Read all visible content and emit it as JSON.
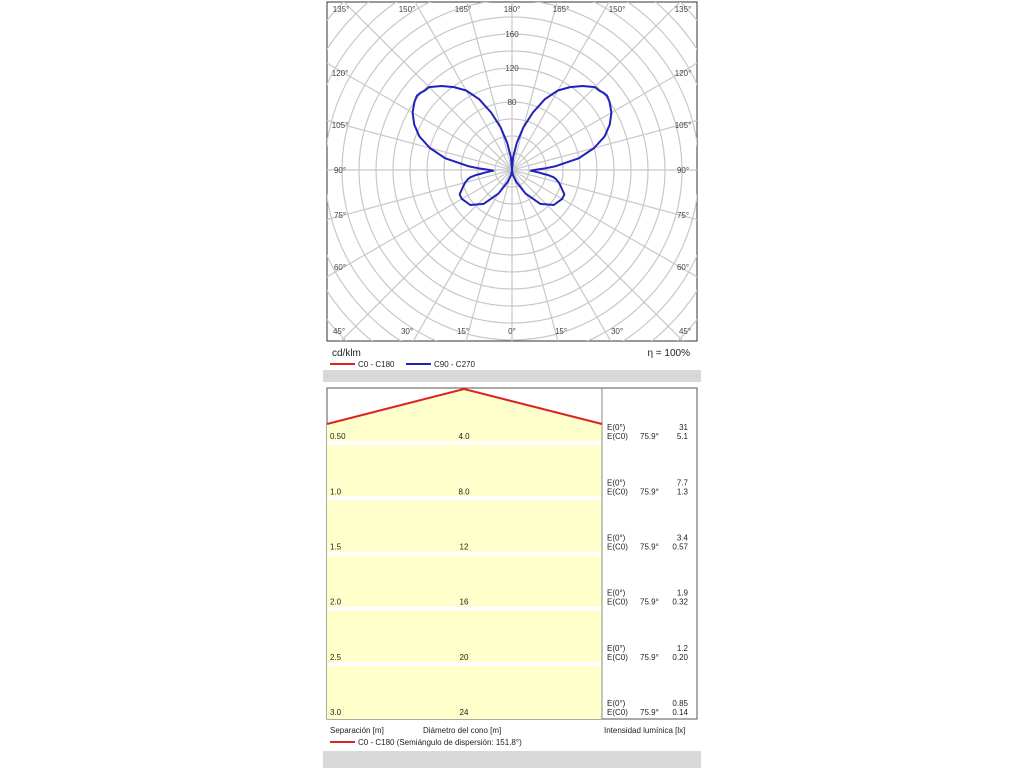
{
  "polar": {
    "unit_label": "cd/klm",
    "efficiency_label": "η = 100%",
    "radial_ticks": [
      "80",
      "120",
      "160"
    ],
    "top_angle_labels": [
      "135°",
      "150°",
      "165°",
      "180°",
      "165°",
      "150°",
      "135°"
    ],
    "side_angle_labels": [
      "120°",
      "105°",
      "90°",
      "75°",
      "60°"
    ],
    "bottom_angle_labels": [
      "45°",
      "30°",
      "15°",
      "0°",
      "15°",
      "30°",
      "45°"
    ],
    "legend": [
      {
        "label": "C0 - C180",
        "color": "#dd2222"
      },
      {
        "label": "C90 - C270",
        "color": "#2222bb"
      }
    ]
  },
  "cone": {
    "rows": [
      {
        "sep": "0.50",
        "diam": "4.0",
        "e0": "31",
        "ang": "75.9°",
        "ec0": "5.1"
      },
      {
        "sep": "1.0",
        "diam": "8.0",
        "e0": "7.7",
        "ang": "75.9°",
        "ec0": "1.3"
      },
      {
        "sep": "1.5",
        "diam": "12",
        "e0": "3.4",
        "ang": "75.9°",
        "ec0": "0.57"
      },
      {
        "sep": "2.0",
        "diam": "16",
        "e0": "1.9",
        "ang": "75.9°",
        "ec0": "0.32"
      },
      {
        "sep": "2.5",
        "diam": "20",
        "e0": "1.2",
        "ang": "75.9°",
        "ec0": "0.20"
      },
      {
        "sep": "3.0",
        "diam": "24",
        "e0": "0.85",
        "ang": "75.9°",
        "ec0": "0.14"
      }
    ],
    "e0_label": "E(0°)",
    "ec0_label": "E(C0)",
    "sep_label": "Separación [m]",
    "diam_label": "Diámetro del cono [m]",
    "intensity_label": "Intensidad lumínica [lx]",
    "legend_label": "C0 - C180 (Semiángulo de dispersión: 151.8°)",
    "legend_color": "#dd2222"
  },
  "chart_data": [
    {
      "type": "polar",
      "rlim": [
        0,
        180
      ],
      "radial_ticks": [
        80,
        120,
        160
      ],
      "series": [
        {
          "name": "C90 - C270",
          "angles_deg": [
            0,
            10,
            20,
            30,
            40,
            50,
            60,
            65,
            70,
            72,
            75,
            78,
            80,
            82,
            85,
            88,
            90,
            93,
            95,
            100,
            105,
            110,
            115,
            120,
            125,
            128,
            130,
            132,
            135,
            140,
            145,
            150,
            155,
            160,
            165,
            170,
            175,
            180
          ],
          "values": [
            0,
            6,
            15,
            32,
            52,
            64,
            68,
            68,
            62,
            60,
            57,
            53,
            50,
            43,
            30,
            22,
            26,
            40,
            52,
            80,
            100,
            116,
            127,
            135,
            140,
            142,
            141,
            139,
            138,
            129,
            119,
            108,
            92,
            72,
            52,
            32,
            15,
            0
          ]
        },
        {
          "name": "C0 - C180",
          "values": []
        }
      ],
      "grid": true
    },
    {
      "type": "table",
      "title": "",
      "series": [
        {
          "name": "C0 - C180",
          "x": [
            0,
            1,
            2
          ],
          "y": [
            0.5,
            0,
            0.5
          ]
        }
      ],
      "columns": [
        "Separación [m]",
        "Diámetro del cono [m]",
        "Intensidad lumínica [lx]"
      ],
      "rows": [
        [
          "0.50",
          "4.0",
          "31",
          "75.9°",
          "5.1"
        ],
        [
          "1.0",
          "8.0",
          "7.7",
          "75.9°",
          "1.3"
        ],
        [
          "1.5",
          "12",
          "3.4",
          "75.9°",
          "0.57"
        ],
        [
          "2.0",
          "16",
          "1.9",
          "75.9°",
          "0.32"
        ],
        [
          "2.5",
          "20",
          "1.2",
          "75.9°",
          "0.20"
        ],
        [
          "3.0",
          "24",
          "0.85",
          "75.9°",
          "0.14"
        ]
      ]
    }
  ]
}
